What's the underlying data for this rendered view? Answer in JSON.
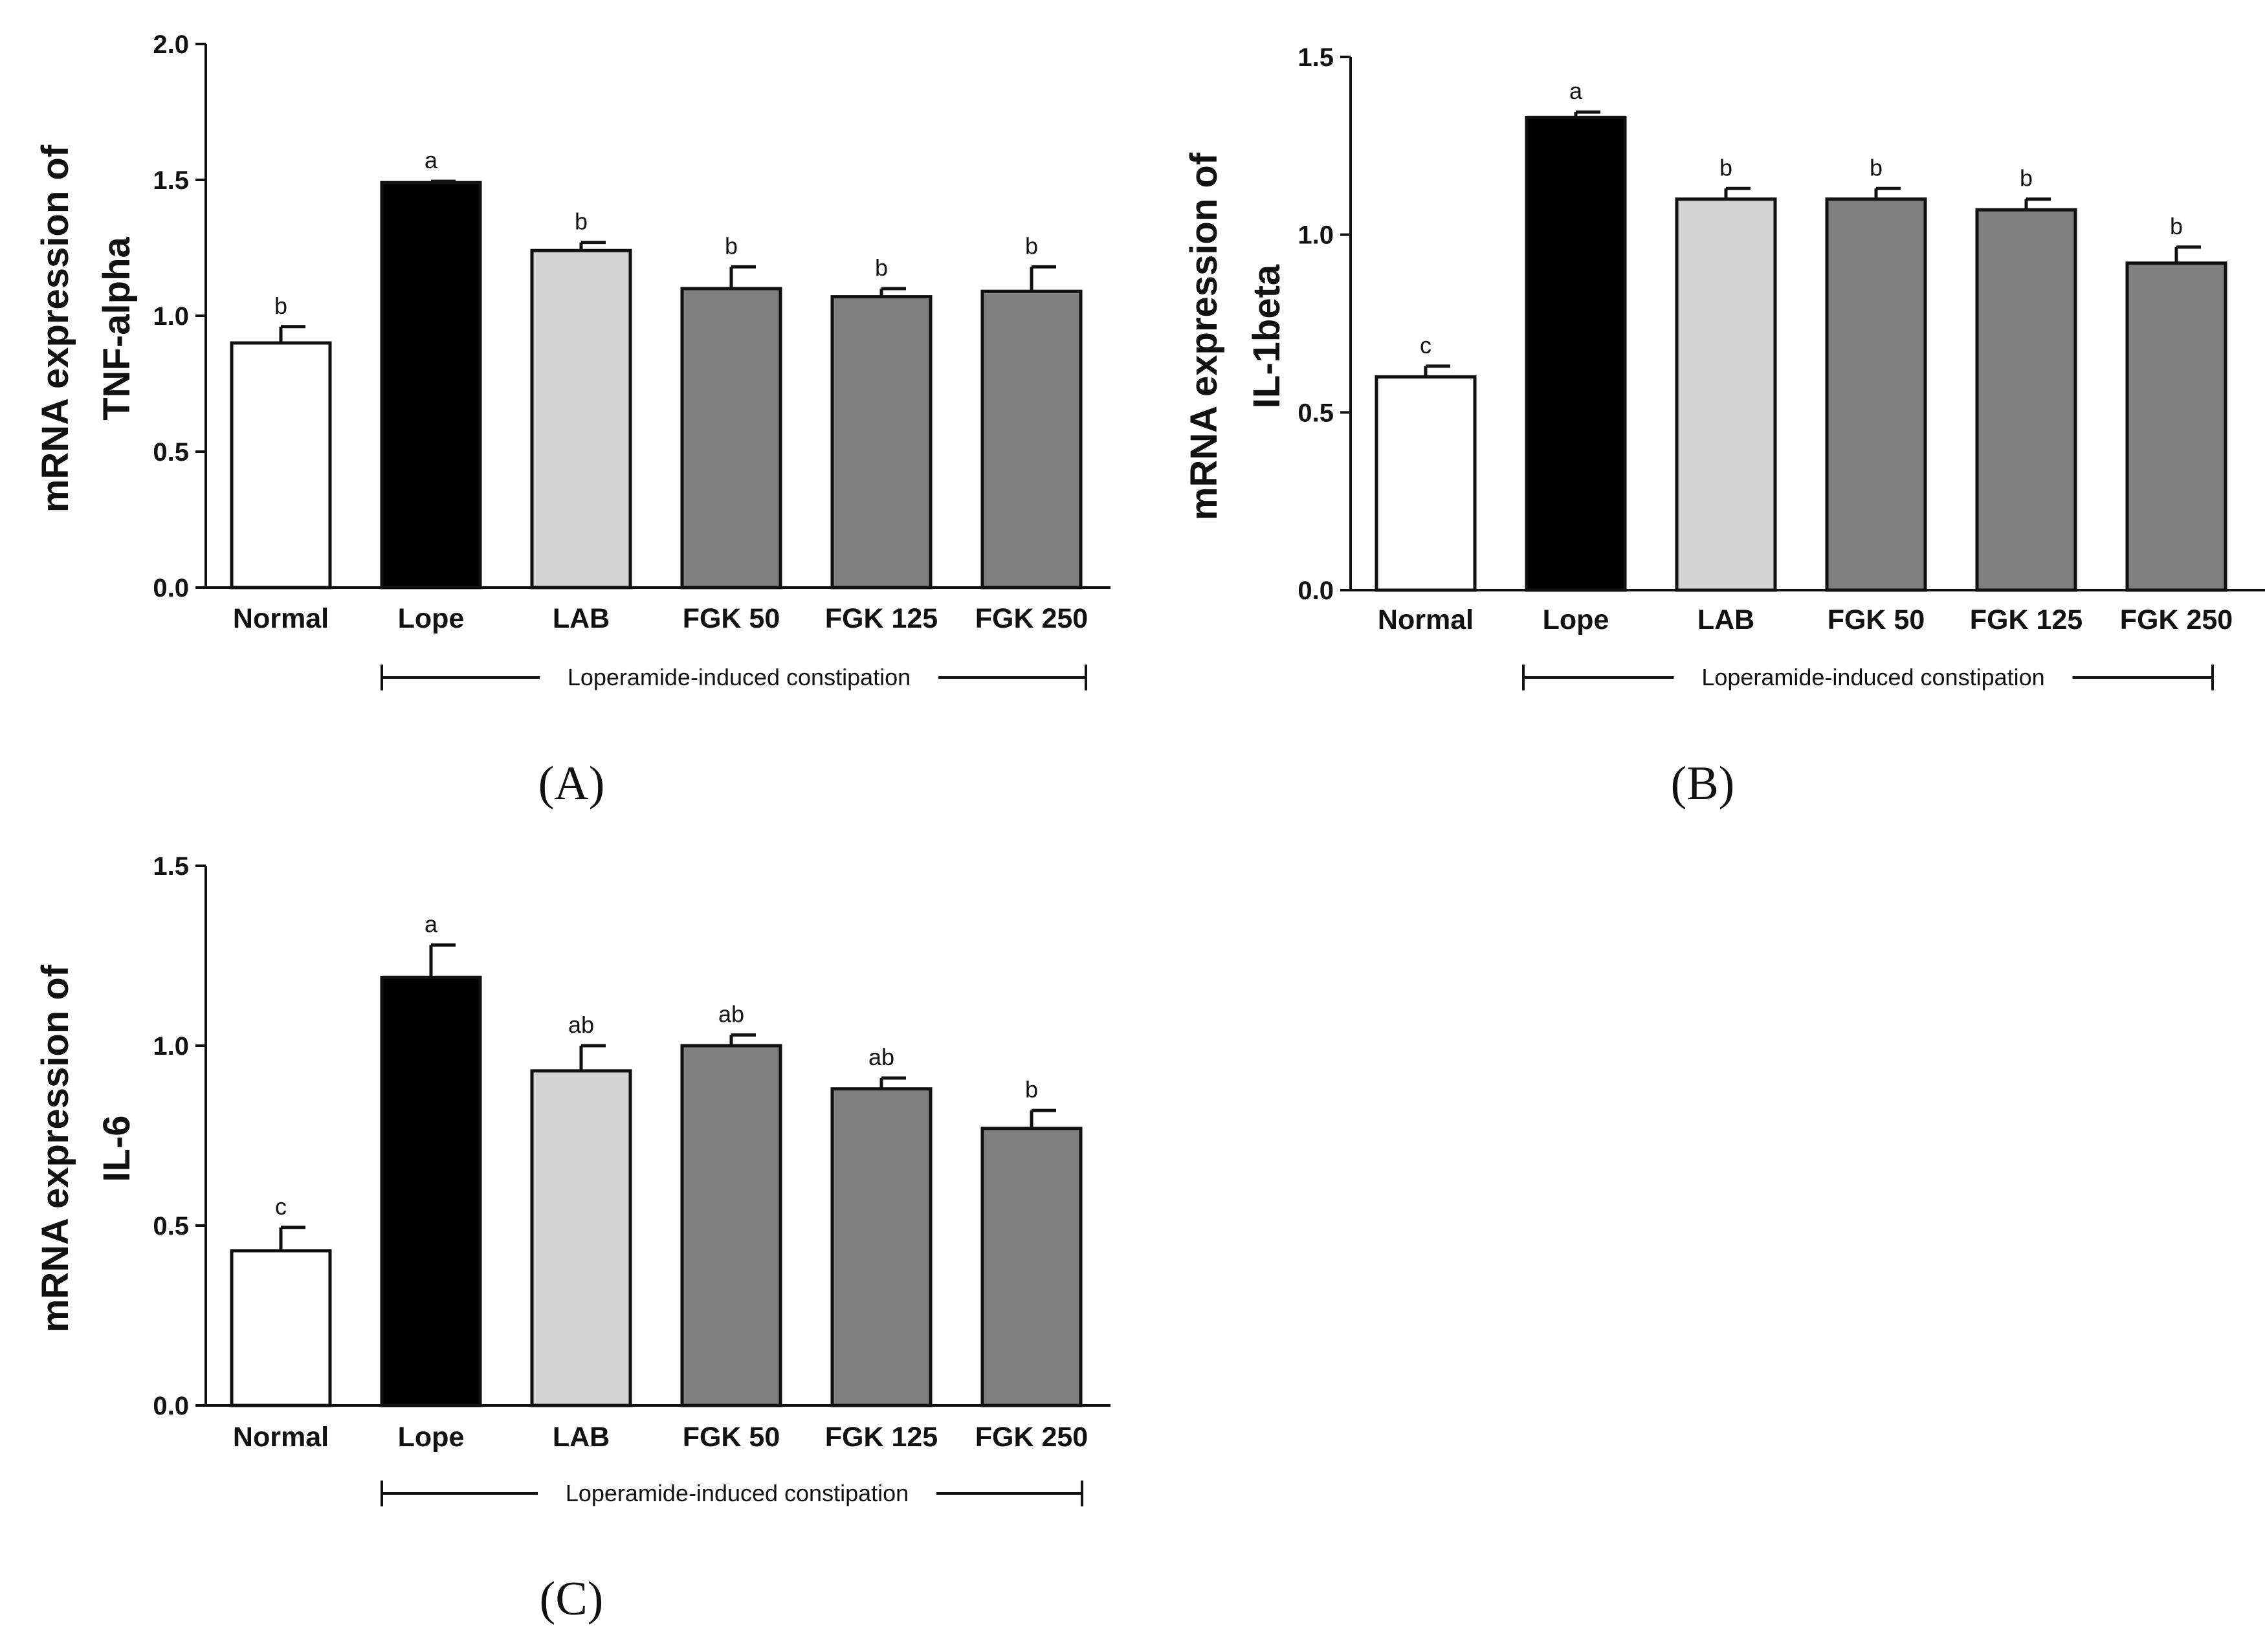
{
  "chart_data": [
    {
      "type": "bar",
      "panel": "A",
      "panel_label": "(A)",
      "ylabel_lines": [
        "mRNA expression of",
        "TNF-alpha"
      ],
      "categories": [
        "Normal",
        "Lope",
        "LAB",
        "FGK 50",
        "FGK 125",
        "FGK 250"
      ],
      "values": [
        0.9,
        1.49,
        1.24,
        1.1,
        1.07,
        1.09
      ],
      "errors": [
        0.06,
        0.005,
        0.03,
        0.08,
        0.03,
        0.09
      ],
      "significance": [
        "b",
        "a",
        "b",
        "b",
        "b",
        "b"
      ],
      "fill_colors": [
        "#ffffff",
        "#000000",
        "#d3d3d3",
        "#808080",
        "#808080",
        "#808080"
      ],
      "ylim": [
        0,
        2.0
      ],
      "yticks": [
        "0.0",
        "0.5",
        "1.0",
        "1.5",
        "2.0"
      ],
      "bracket_label": "Loperamide-induced constipation",
      "grid": false
    },
    {
      "type": "bar",
      "panel": "B",
      "panel_label": "(B)",
      "ylabel_lines": [
        "mRNA expression of",
        "IL-1beta"
      ],
      "categories": [
        "Normal",
        "Lope",
        "LAB",
        "FGK 50",
        "FGK 125",
        "FGK 250"
      ],
      "values": [
        0.6,
        1.33,
        1.1,
        1.1,
        1.07,
        0.92
      ],
      "errors": [
        0.03,
        0.015,
        0.03,
        0.03,
        0.03,
        0.045
      ],
      "significance": [
        "c",
        "a",
        "b",
        "b",
        "b",
        "b"
      ],
      "fill_colors": [
        "#ffffff",
        "#000000",
        "#d3d3d3",
        "#808080",
        "#808080",
        "#808080"
      ],
      "ylim": [
        0,
        1.5
      ],
      "yticks": [
        "0.0",
        "0.5",
        "1.0",
        "1.5"
      ],
      "bracket_label": "Loperamide-induced constipation",
      "grid": false
    },
    {
      "type": "bar",
      "panel": "C",
      "panel_label": "(C)",
      "ylabel_lines": [
        "mRNA expression of",
        "IL-6"
      ],
      "categories": [
        "Normal",
        "Lope",
        "LAB",
        "FGK 50",
        "FGK 125",
        "FGK 250"
      ],
      "values": [
        0.43,
        1.19,
        0.93,
        1.0,
        0.88,
        0.77
      ],
      "errors": [
        0.065,
        0.09,
        0.07,
        0.03,
        0.03,
        0.05
      ],
      "significance": [
        "c",
        "a",
        "ab",
        "ab",
        "ab",
        "b"
      ],
      "fill_colors": [
        "#ffffff",
        "#000000",
        "#d3d3d3",
        "#808080",
        "#808080",
        "#808080"
      ],
      "ylim": [
        0,
        1.5
      ],
      "yticks": [
        "0.0",
        "0.5",
        "1.0",
        "1.5"
      ],
      "bracket_label": "Loperamide-induced constipation",
      "grid": false
    }
  ]
}
